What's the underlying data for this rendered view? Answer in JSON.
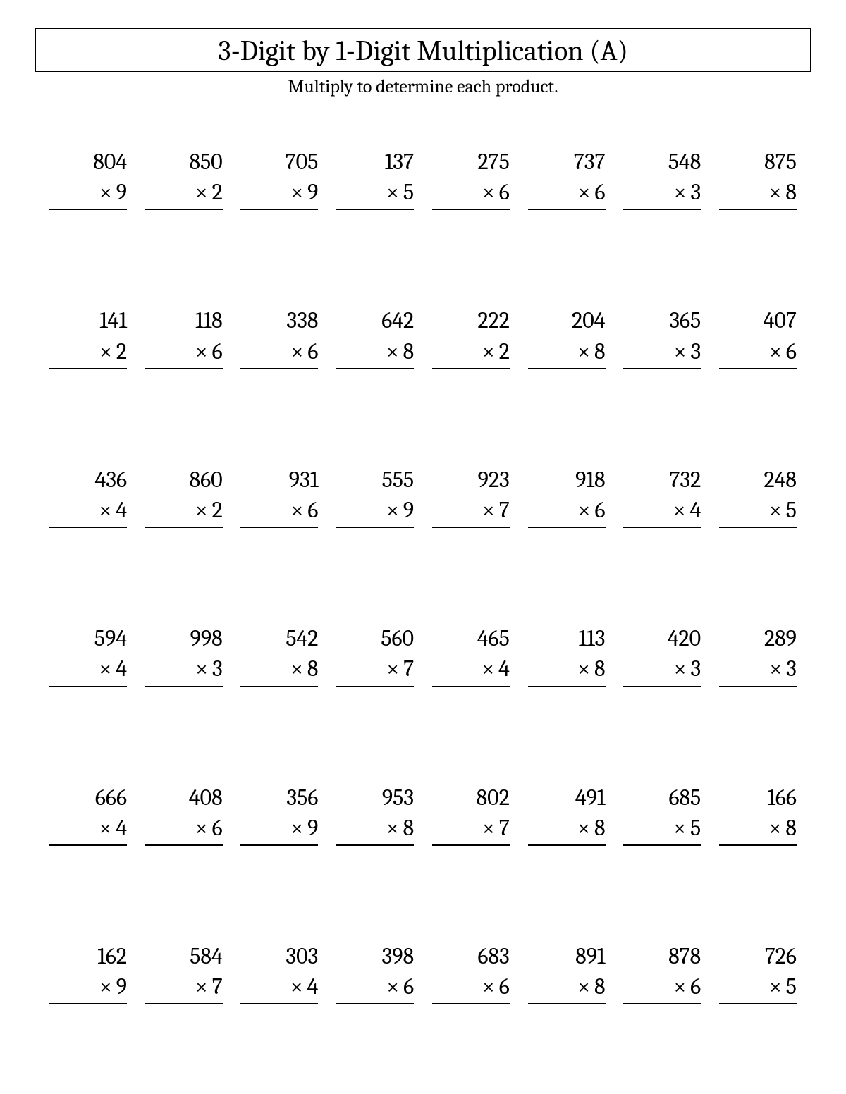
{
  "title": "3-Digit by 1-Digit Multiplication (A)",
  "subtitle": "Multiply to determine each product.",
  "mult_sign": "×",
  "rows": [
    [
      {
        "top": "804",
        "mult": "9"
      },
      {
        "top": "850",
        "mult": "2"
      },
      {
        "top": "705",
        "mult": "9"
      },
      {
        "top": "137",
        "mult": "5"
      },
      {
        "top": "275",
        "mult": "6"
      },
      {
        "top": "737",
        "mult": "6"
      },
      {
        "top": "548",
        "mult": "3"
      },
      {
        "top": "875",
        "mult": "8"
      }
    ],
    [
      {
        "top": "141",
        "mult": "2"
      },
      {
        "top": "118",
        "mult": "6"
      },
      {
        "top": "338",
        "mult": "6"
      },
      {
        "top": "642",
        "mult": "8"
      },
      {
        "top": "222",
        "mult": "2"
      },
      {
        "top": "204",
        "mult": "8"
      },
      {
        "top": "365",
        "mult": "3"
      },
      {
        "top": "407",
        "mult": "6"
      }
    ],
    [
      {
        "top": "436",
        "mult": "4"
      },
      {
        "top": "860",
        "mult": "2"
      },
      {
        "top": "931",
        "mult": "6"
      },
      {
        "top": "555",
        "mult": "9"
      },
      {
        "top": "923",
        "mult": "7"
      },
      {
        "top": "918",
        "mult": "6"
      },
      {
        "top": "732",
        "mult": "4"
      },
      {
        "top": "248",
        "mult": "5"
      }
    ],
    [
      {
        "top": "594",
        "mult": "4"
      },
      {
        "top": "998",
        "mult": "3"
      },
      {
        "top": "542",
        "mult": "8"
      },
      {
        "top": "560",
        "mult": "7"
      },
      {
        "top": "465",
        "mult": "4"
      },
      {
        "top": "113",
        "mult": "8"
      },
      {
        "top": "420",
        "mult": "3"
      },
      {
        "top": "289",
        "mult": "3"
      }
    ],
    [
      {
        "top": "666",
        "mult": "4"
      },
      {
        "top": "408",
        "mult": "6"
      },
      {
        "top": "356",
        "mult": "9"
      },
      {
        "top": "953",
        "mult": "8"
      },
      {
        "top": "802",
        "mult": "7"
      },
      {
        "top": "491",
        "mult": "8"
      },
      {
        "top": "685",
        "mult": "5"
      },
      {
        "top": "166",
        "mult": "8"
      }
    ],
    [
      {
        "top": "162",
        "mult": "9"
      },
      {
        "top": "584",
        "mult": "7"
      },
      {
        "top": "303",
        "mult": "4"
      },
      {
        "top": "398",
        "mult": "6"
      },
      {
        "top": "683",
        "mult": "6"
      },
      {
        "top": "891",
        "mult": "8"
      },
      {
        "top": "878",
        "mult": "6"
      },
      {
        "top": "726",
        "mult": "5"
      }
    ]
  ]
}
